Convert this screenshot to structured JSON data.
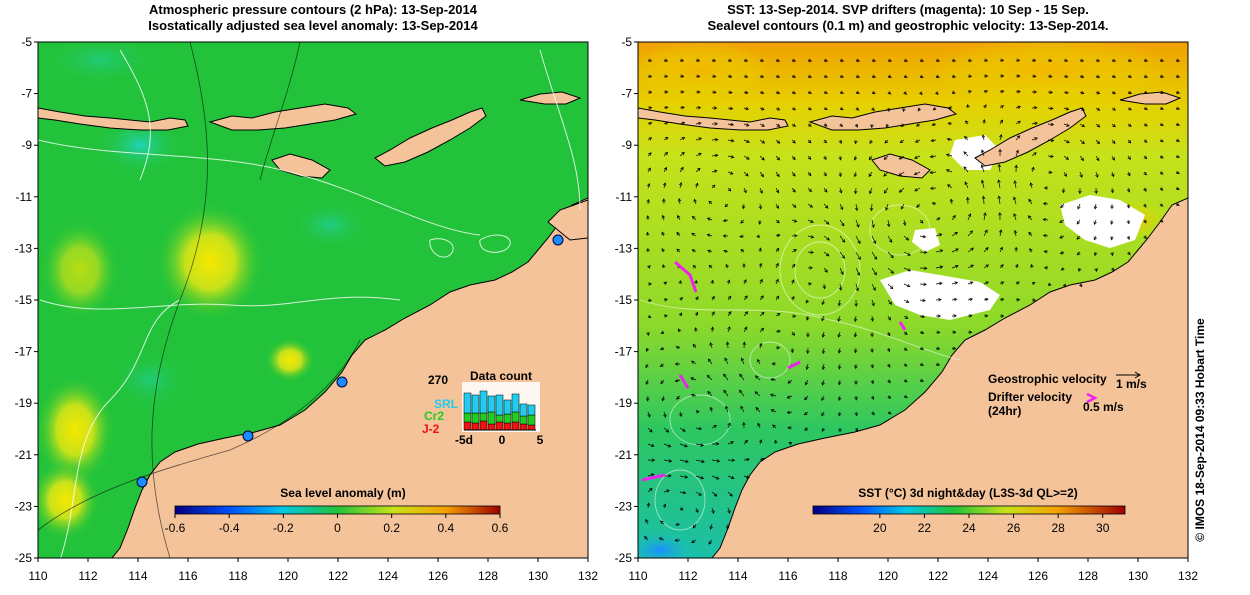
{
  "left_panel": {
    "title_line1": "Atmospheric pressure contours (2 hPa): 13-Sep-2014",
    "title_line2": "Isostatically adjusted sea level anomaly: 13-Sep-2014",
    "y_ticks": [
      "-5",
      "-7",
      "-9",
      "-11",
      "-13",
      "-15",
      "-17",
      "-19",
      "-21",
      "-23",
      "-25"
    ],
    "x_ticks": [
      "110",
      "112",
      "114",
      "116",
      "118",
      "120",
      "122",
      "124",
      "126",
      "128",
      "130",
      "132"
    ],
    "colorbar": {
      "label": "Sea level anomaly (m)",
      "ticks": [
        "-0.6",
        "-0.4",
        "-0.2",
        "0",
        "0.2",
        "0.4",
        "0.6"
      ],
      "range": [
        -0.6,
        0.6
      ]
    },
    "inset": {
      "title": "Data count",
      "max_label": "270",
      "series_labels": [
        "SRL",
        "Cr2",
        "J-2"
      ],
      "series_colors": [
        "#22ccee",
        "#22cc22",
        "#ee1111"
      ],
      "x_ticks": [
        "-5d",
        "0",
        "5"
      ]
    }
  },
  "right_panel": {
    "title_line1": "SST: 13-Sep-2014. SVP drifters (magenta): 10 Sep - 15 Sep.",
    "title_line2": "Sealevel contours (0.1 m) and geostrophic velocity: 13-Sep-2014.",
    "y_ticks": [
      "-5",
      "-7",
      "-9",
      "-11",
      "-13",
      "-15",
      "-17",
      "-19",
      "-21",
      "-23",
      "-25"
    ],
    "x_ticks": [
      "110",
      "112",
      "114",
      "116",
      "118",
      "120",
      "122",
      "124",
      "126",
      "128",
      "130",
      "132"
    ],
    "colorbar": {
      "label": "SST (°C) 3d night&day (L3S-3d QL>=2)",
      "ticks": [
        "20",
        "22",
        "24",
        "26",
        "28",
        "30"
      ],
      "range": [
        17,
        31
      ]
    },
    "legend": {
      "geostrophic": "Geostrophic velocity",
      "geostrophic_scale": "1 m/s",
      "drifter_line1": "Drifter velocity",
      "drifter_line2": "(24hr)",
      "drifter_scale": "0.5 m/s"
    }
  },
  "credit": "© IMOS 18-Sep-2014 09:33 Hobart Time",
  "colors": {
    "land": "#f5c39a",
    "sea_green": "#22c33a",
    "coast_line": "#000000",
    "drifter": "#ee22ee"
  }
}
